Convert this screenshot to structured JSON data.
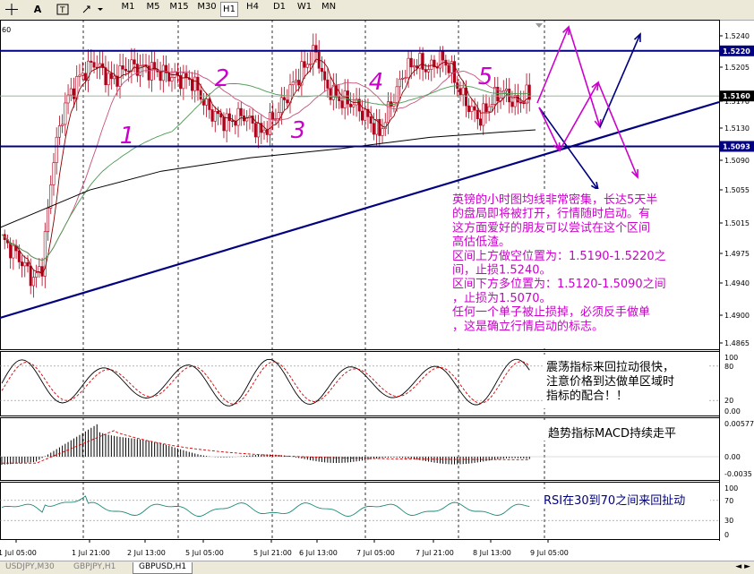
{
  "toolbar": {
    "timeframes": [
      {
        "label": "M1",
        "active": false
      },
      {
        "label": "M5",
        "active": false
      },
      {
        "label": "M15",
        "active": false
      },
      {
        "label": "M30",
        "active": false
      },
      {
        "label": "H1",
        "active": true
      },
      {
        "label": "H4",
        "active": false
      },
      {
        "label": "D1",
        "active": false
      },
      {
        "label": "W1",
        "active": false
      },
      {
        "label": "MN",
        "active": false
      }
    ]
  },
  "chart": {
    "corner_label": "60",
    "price_labels": [
      "1.5240",
      "1.5205",
      "1.5170",
      "1.5130",
      "1.5090",
      "1.5055",
      "1.5015",
      "1.4975",
      "1.4940",
      "1.4900",
      "1.4865"
    ],
    "stoch_labels": [
      "100",
      "80",
      "20",
      "0.00"
    ],
    "macd_labels": [
      "0.00577",
      "0.00",
      "-0.0035"
    ],
    "rsi_labels": [
      "100",
      "70",
      "30",
      "0"
    ],
    "level_high": "1.5220",
    "level_low": "1.5093",
    "current_price": "1.5160",
    "x_labels": [
      "1 Jul 05:00",
      "1 Jul 21:00",
      "2 Jul 13:00",
      "5 Jul 05:00",
      "5 Jul 21:00",
      "6 Jul 13:00",
      "7 Jul 05:00",
      "7 Jul 21:00",
      "8 Jul 13:00",
      "9 Jul 05:00"
    ],
    "wave_numbers": [
      "1",
      "2",
      "3",
      "4",
      "5"
    ],
    "main_annotation": [
      "英镑的小时图均线非常密集，长达5天半",
      "的盘局即将被打开，行情随时启动。有",
      "这方面爱好的朋友可以尝试在这个区间",
      "高估低渣。",
      "区间上方做空位置为：1.5190-1.5220之",
      "间，止损1.5240。",
      "区间下方多位置为：1.5120-1.5090之间",
      "，止损为1.5070。",
      "任何一个单子被止损掉，必须反手做单",
      "，这是确立行情启动的标志。"
    ],
    "stoch_annotation": [
      "震荡指标来回拉动很快，",
      "注意价格到达做单区域时",
      "指标的配合！！"
    ],
    "macd_annotation": "趋势指标MACD持续走平",
    "rsi_annotation": "RSI在30到70之间来回扯动",
    "colors": {
      "candle": "#b0001a",
      "level_line": "#000080",
      "annotation": "#cc00cc",
      "ma_fast": "#8b0000",
      "ma_mid": "#c8507a",
      "ma_green": "#4a9a50",
      "ma_slow": "#000000",
      "rsi": "#1a8a78"
    }
  },
  "tabs": [
    {
      "label": "USDJPY,M30",
      "active": false
    },
    {
      "label": "GBPJPY,H1",
      "active": false
    },
    {
      "label": "GBPUSD,H1",
      "active": true
    }
  ]
}
